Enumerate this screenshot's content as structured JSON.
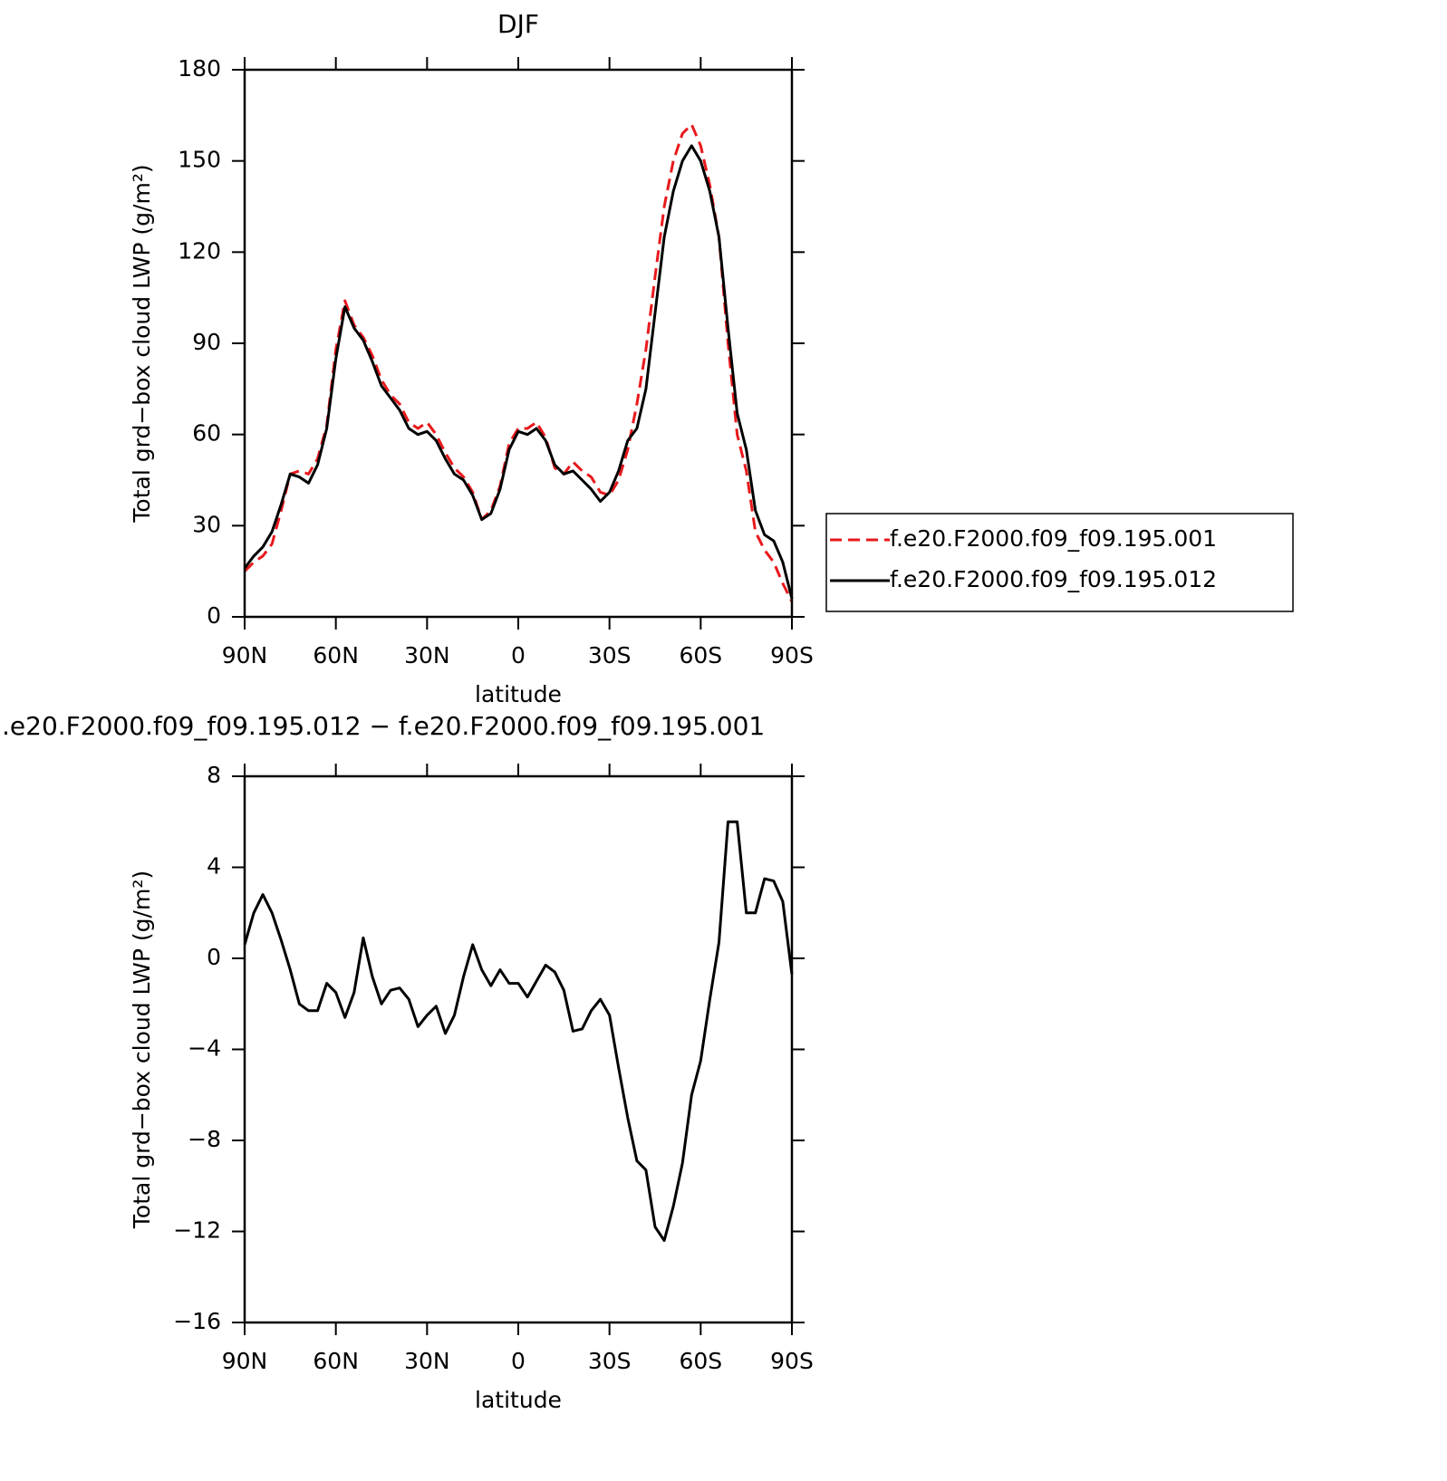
{
  "chart_data": [
    {
      "type": "line",
      "title": "DJF",
      "xlabel": "latitude",
      "ylabel": "Total grd−box cloud LWP (g/m²)",
      "x": [
        90,
        87,
        84,
        81,
        78,
        75,
        72,
        69,
        66,
        63,
        60,
        57,
        54,
        51,
        48,
        45,
        42,
        39,
        36,
        33,
        30,
        27,
        24,
        21,
        18,
        15,
        12,
        9,
        6,
        3,
        0,
        -3,
        -6,
        -9,
        -12,
        -15,
        -18,
        -21,
        -24,
        -27,
        -30,
        -33,
        -36,
        -39,
        -42,
        -45,
        -48,
        -51,
        -54,
        -57,
        -60,
        -63,
        -66,
        -69,
        -72,
        -75,
        -78,
        -81,
        -84,
        -87,
        -90
      ],
      "series": [
        {
          "name": "f.e20.F2000.f09_f09.195.001",
          "color": "#e8191c",
          "dashed": true,
          "values": [
            15,
            18,
            20,
            24,
            35,
            47,
            48,
            47,
            52,
            63,
            88,
            104,
            96,
            92,
            86,
            78,
            73,
            70,
            64,
            62,
            64,
            60,
            54,
            49,
            46,
            41,
            32,
            35,
            43,
            57,
            62,
            62,
            64,
            59,
            49,
            47,
            51,
            48,
            46,
            41,
            40,
            45,
            55,
            70,
            88,
            112,
            135,
            150,
            159,
            162,
            155,
            142,
            125,
            90,
            60,
            48,
            28,
            22,
            18,
            11,
            5
          ]
        },
        {
          "name": "f.e20.F2000.f09_f09.195.012",
          "color": "#000000",
          "dashed": false,
          "values": [
            16,
            20,
            23,
            28,
            37,
            47,
            46,
            44,
            50,
            62,
            85,
            102,
            95,
            91,
            84,
            76,
            72,
            68,
            62,
            60,
            61,
            58,
            52,
            47,
            45,
            40,
            32,
            34,
            42,
            55,
            61,
            60,
            62,
            58,
            50,
            47,
            48,
            45,
            42,
            38,
            41,
            48,
            58,
            62,
            75,
            100,
            125,
            140,
            150,
            155,
            150,
            140,
            125,
            95,
            67,
            55,
            35,
            27,
            25,
            18,
            6
          ]
        }
      ],
      "xlim": [
        90,
        -90
      ],
      "ylim": [
        0,
        180
      ],
      "xticks": [
        {
          "value": 90,
          "label": "90N"
        },
        {
          "value": 60,
          "label": "60N"
        },
        {
          "value": 30,
          "label": "30N"
        },
        0,
        {
          "value": -30,
          "label": "30S"
        },
        {
          "value": -60,
          "label": "60S"
        },
        {
          "value": -90,
          "label": "90S"
        }
      ],
      "yticks": [
        0,
        30,
        60,
        90,
        120,
        150,
        180
      ],
      "legend": "right"
    },
    {
      "type": "line",
      "title": ".e20.F2000.f09_f09.195.012 − f.e20.F2000.f09_f09.195.001",
      "xlabel": "latitude",
      "ylabel": "Total grd−box cloud LWP (g/m²)",
      "x": [
        90,
        87,
        84,
        81,
        78,
        75,
        72,
        69,
        66,
        63,
        60,
        57,
        54,
        51,
        48,
        45,
        42,
        39,
        36,
        33,
        30,
        27,
        24,
        21,
        18,
        15,
        12,
        9,
        6,
        3,
        0,
        -3,
        -6,
        -9,
        -12,
        -15,
        -18,
        -21,
        -24,
        -27,
        -30,
        -33,
        -36,
        -39,
        -42,
        -45,
        -48,
        -51,
        -54,
        -57,
        -60,
        -63,
        -66,
        -69,
        -72,
        -75,
        -78,
        -81,
        -84,
        -87,
        -90
      ],
      "values": [
        0.6,
        2.0,
        2.8,
        2.0,
        0.8,
        -0.5,
        -2.0,
        -2.3,
        -2.3,
        -1.1,
        -1.5,
        -2.6,
        -1.5,
        0.9,
        -0.8,
        -2.0,
        -1.4,
        -1.3,
        -1.8,
        -3.0,
        -2.5,
        -2.1,
        -3.3,
        -2.5,
        -0.8,
        0.6,
        -0.5,
        -1.2,
        -0.5,
        -1.1,
        -1.1,
        -1.7,
        -1.0,
        -0.3,
        -0.6,
        -1.4,
        -3.2,
        -3.1,
        -2.3,
        -1.8,
        -2.5,
        -4.8,
        -7.0,
        -8.9,
        -9.3,
        -11.8,
        -12.4,
        -10.9,
        -9.0,
        -6.0,
        -4.5,
        -1.8,
        0.7,
        6.0,
        6.0,
        2.0,
        2.0,
        3.5,
        3.4,
        2.5,
        -0.7
      ],
      "color": "#000000",
      "xlim": [
        90,
        -90
      ],
      "ylim": [
        -16,
        8
      ],
      "xticks": [
        {
          "value": 90,
          "label": "90N"
        },
        {
          "value": 60,
          "label": "60N"
        },
        {
          "value": 30,
          "label": "30N"
        },
        0,
        {
          "value": -30,
          "label": "30S"
        },
        {
          "value": -60,
          "label": "60S"
        },
        {
          "value": -90,
          "label": "90S"
        }
      ],
      "yticks": [
        {
          "value": -16,
          "label": "−16"
        },
        {
          "value": -12,
          "label": "−12"
        },
        {
          "value": -8,
          "label": "−8"
        },
        {
          "value": -4,
          "label": "−4"
        },
        0,
        4,
        8
      ]
    }
  ]
}
